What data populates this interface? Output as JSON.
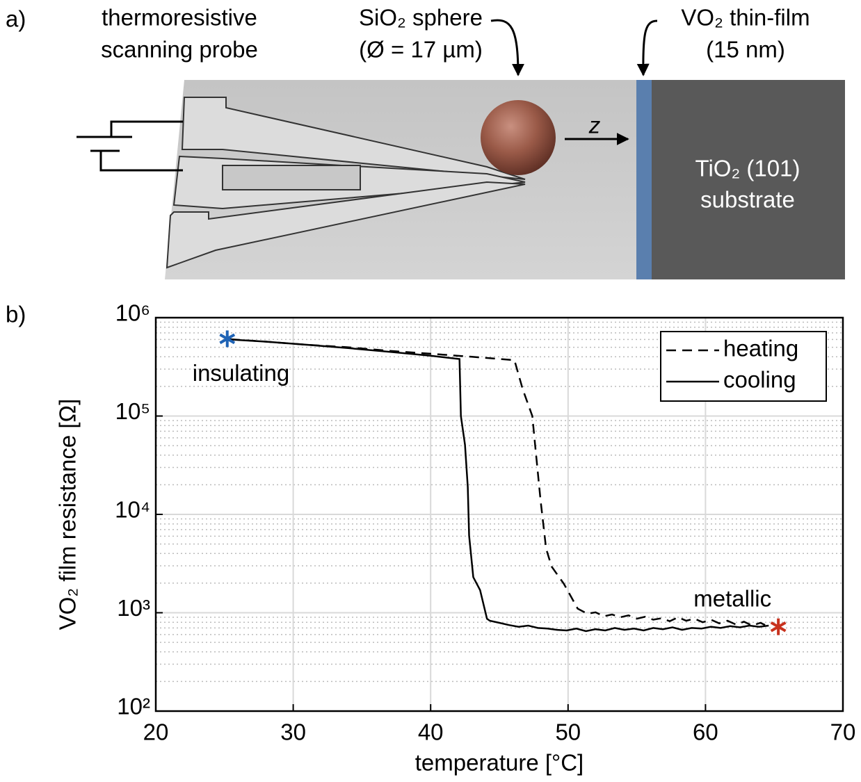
{
  "panel_a": {
    "label": "a)",
    "probe_label": [
      "thermoresistive",
      "scanning probe"
    ],
    "sphere_label": [
      "SiO₂ sphere",
      "(Ø = 17 µm)"
    ],
    "film_label": [
      "VO₂ thin-film",
      "(15 nm)"
    ],
    "axis_label": "z",
    "substrate_label": [
      "TiO₂ (101)",
      "substrate"
    ]
  },
  "chart_data": {
    "type": "line",
    "panel_label": "b)",
    "xlabel": "temperature [°C]",
    "ylabel": "VO₂ film resistance [Ω]",
    "xlim": [
      20,
      70
    ],
    "xticks": [
      20,
      30,
      40,
      50,
      60,
      70
    ],
    "ylim": [
      100,
      1000000
    ],
    "log_y": true,
    "yticks": [
      {
        "value": 100,
        "label": "10²"
      },
      {
        "value": 1000,
        "label": "10³"
      },
      {
        "value": 10000,
        "label": "10⁴"
      },
      {
        "value": 100000,
        "label": "10⁵"
      },
      {
        "value": 1000000,
        "label": "10⁶"
      }
    ],
    "grid": true,
    "minor_grid": true,
    "legend": "upper-right",
    "series": [
      {
        "name": "heating",
        "color": "#000000",
        "line_style": "dashed",
        "x": [
          25.4,
          28,
          31,
          34,
          37,
          40,
          43,
          46.1,
          46.7,
          47.4,
          47.6,
          48.0,
          48.4,
          48.8,
          49.7,
          50.7,
          51.4,
          52.0,
          52.6,
          53.2,
          53.8,
          54.4,
          55.0,
          55.6,
          56.2,
          56.8,
          57.4,
          58.0,
          58.6,
          59.2,
          59.8,
          60.4,
          61.0,
          61.6,
          62.2,
          62.8,
          63.4,
          64.0,
          64.6
        ],
        "values": [
          604000,
          570000,
          530000,
          500000,
          460000,
          430000,
          400000,
          370000,
          187000,
          100000,
          51000,
          13800,
          4500,
          2950,
          1960,
          1100,
          977,
          1010,
          920,
          960,
          900,
          940,
          870,
          910,
          850,
          880,
          820,
          900,
          830,
          870,
          800,
          850,
          780,
          830,
          760,
          810,
          740,
          790,
          720
        ]
      },
      {
        "name": "cooling",
        "color": "#000000",
        "line_style": "solid",
        "x": [
          25.4,
          28,
          31,
          34,
          37,
          40,
          42.1,
          42.2,
          42.5,
          42.7,
          42.8,
          43.1,
          43.6,
          44.1,
          44.3,
          45.0,
          45.7,
          46.4,
          47.1,
          47.8,
          48.5,
          49.2,
          49.9,
          50.6,
          51.3,
          52.0,
          52.7,
          53.4,
          54.1,
          54.8,
          55.5,
          56.2,
          56.9,
          57.6,
          58.3,
          59.0,
          59.7,
          60.4,
          61.1,
          61.8,
          62.5,
          63.2,
          63.9,
          64.6
        ],
        "values": [
          600000,
          570000,
          530000,
          490000,
          450000,
          410000,
          380000,
          100000,
          51000,
          19000,
          6100,
          2300,
          1700,
          870,
          830,
          790,
          750,
          720,
          740,
          700,
          690,
          670,
          660,
          690,
          650,
          680,
          660,
          700,
          670,
          690,
          660,
          700,
          680,
          710,
          670,
          700,
          690,
          720,
          700,
          730,
          710,
          740,
          720,
          740
        ]
      }
    ],
    "markers": [
      {
        "label": "insulating",
        "x": 25.2,
        "y": 610000,
        "color": "#1f63b5"
      },
      {
        "label": "metallic",
        "x": 65.3,
        "y": 720,
        "color": "#c8321e"
      }
    ]
  }
}
